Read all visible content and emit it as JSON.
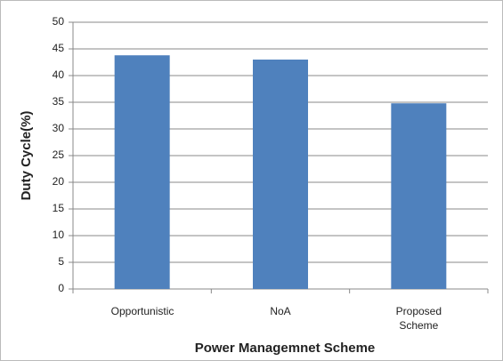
{
  "chart_data": {
    "type": "bar",
    "xlabel": "Power Managemnet Scheme",
    "ylabel": "Duty Cycle(%)",
    "categories": [
      "Opportunistic",
      "NoA",
      "Proposed Scheme"
    ],
    "values": [
      43.8,
      43,
      34.8
    ],
    "color": "#4f81bd",
    "ylim": [
      0,
      50
    ],
    "yticks": [
      0,
      5,
      10,
      15,
      20,
      25,
      30,
      35,
      40,
      45,
      50
    ],
    "grid": true
  }
}
